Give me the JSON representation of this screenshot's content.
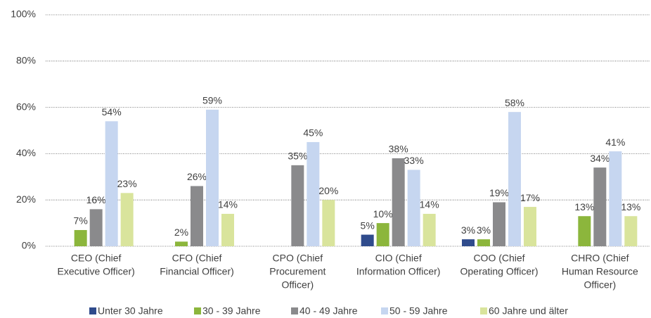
{
  "chart_data": {
    "type": "bar",
    "categories": [
      [
        "CEO (Chief",
        "Executive Officer)"
      ],
      [
        "CFO (Chief",
        "Financial Officer)"
      ],
      [
        "CPO (Chief",
        "Procurement",
        "Officer)"
      ],
      [
        "CIO (Chief",
        "Information Officer)"
      ],
      [
        "COO (Chief",
        "Operating Officer)"
      ],
      [
        "CHRO (Chief",
        "Human Resource",
        "Officer)"
      ]
    ],
    "series": [
      {
        "name": "Unter 30 Jahre",
        "color": "#2f4b8c",
        "values": [
          null,
          null,
          null,
          5,
          3,
          null
        ],
        "value_labels": [
          null,
          null,
          null,
          "5%",
          "3%",
          null
        ]
      },
      {
        "name": "30 - 39 Jahre",
        "color": "#8cb63c",
        "values": [
          7,
          2,
          null,
          10,
          3,
          13
        ],
        "value_labels": [
          "7%",
          "2%",
          null,
          "10%",
          "3%",
          "13%"
        ]
      },
      {
        "name": "40 - 49 Jahre",
        "color": "#8a8a8c",
        "values": [
          16,
          26,
          35,
          38,
          19,
          34
        ],
        "value_labels": [
          "16%",
          "26%",
          "35%",
          "38%",
          "19%",
          "34%"
        ]
      },
      {
        "name": "50 - 59 Jahre",
        "color": "#c6d6f0",
        "values": [
          54,
          59,
          45,
          33,
          58,
          41
        ],
        "value_labels": [
          "54%",
          "59%",
          "45%",
          "33%",
          "58%",
          "41%"
        ]
      },
      {
        "name": "60 Jahre und älter",
        "color": "#d9e49c",
        "values": [
          23,
          14,
          20,
          14,
          17,
          13
        ],
        "value_labels": [
          "23%",
          "14%",
          "20%",
          "14%",
          "17%",
          "13%"
        ]
      }
    ],
    "ylim": [
      0,
      100
    ],
    "yticks": [
      {
        "value": 0,
        "label": "0%"
      },
      {
        "value": 20,
        "label": "20%"
      },
      {
        "value": 40,
        "label": "40%"
      },
      {
        "value": 60,
        "label": "60%"
      },
      {
        "value": 80,
        "label": "80%"
      },
      {
        "value": 100,
        "label": "100%"
      }
    ],
    "grid": true,
    "legend": "bottom"
  }
}
